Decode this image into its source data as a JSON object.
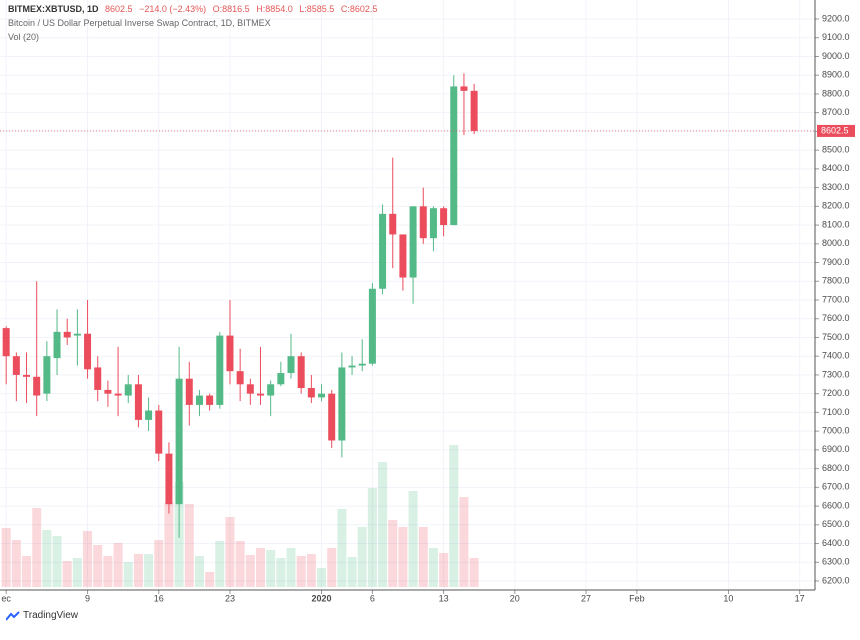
{
  "chart_data": {
    "type": "candlestick",
    "header": {
      "symbol": "BITMEX:XBTUSD, 1D",
      "last": "8602.5",
      "change": "−214.0 (−2.43%)",
      "open": "O:8816.5",
      "high": "H:8854.0",
      "low": "L:8585.5",
      "close": "C:8602.5"
    },
    "title": "Bitcoin / US Dollar Perpetual Inverse Swap Contract, 1D, BITMEX",
    "volume_label": "Vol (20)",
    "brand": "TradingView",
    "up_color": "#53b987",
    "down_color": "#eb4d5c",
    "x": [
      "2019-12-01",
      "2019-12-02",
      "2019-12-03",
      "2019-12-04",
      "2019-12-05",
      "2019-12-06",
      "2019-12-07",
      "2019-12-08",
      "2019-12-09",
      "2019-12-10",
      "2019-12-11",
      "2019-12-12",
      "2019-12-13",
      "2019-12-14",
      "2019-12-15",
      "2019-12-16",
      "2019-12-17",
      "2019-12-18",
      "2019-12-19",
      "2019-12-20",
      "2019-12-21",
      "2019-12-22",
      "2019-12-23",
      "2019-12-24",
      "2019-12-25",
      "2019-12-26",
      "2019-12-27",
      "2019-12-28",
      "2019-12-29",
      "2019-12-30",
      "2019-12-31",
      "2020-01-01",
      "2020-01-02",
      "2020-01-03",
      "2020-01-04",
      "2020-01-05",
      "2020-01-06",
      "2020-01-07",
      "2020-01-08",
      "2020-01-09",
      "2020-01-10",
      "2020-01-11",
      "2020-01-12",
      "2020-01-13",
      "2020-01-14",
      "2020-01-15",
      "2020-01-16"
    ],
    "open": [
      7550,
      7400,
      7300,
      7290,
      7200,
      7390,
      7530,
      7510,
      7520,
      7340,
      7220,
      7200,
      7190,
      7250,
      7060,
      7110,
      6880,
      6610,
      7280,
      7140,
      7190,
      7140,
      7510,
      7320,
      7250,
      7200,
      7190,
      7250,
      7310,
      7400,
      7230,
      7180,
      7200,
      6950,
      7340,
      7350,
      7360,
      7760,
      8160,
      8050,
      7820,
      8200,
      8030,
      8190,
      8100,
      8840,
      8816.5
    ],
    "high": [
      7560,
      7420,
      7420,
      7800,
      7480,
      7650,
      7600,
      7650,
      7700,
      7400,
      7270,
      7450,
      7300,
      7300,
      7180,
      7140,
      6940,
      7450,
      7370,
      7220,
      7200,
      7530,
      7700,
      7440,
      7280,
      7450,
      7270,
      7370,
      7520,
      7420,
      7300,
      7250,
      7220,
      7420,
      7400,
      7490,
      7790,
      8210,
      8460,
      8050,
      8200,
      8300,
      8200,
      8200,
      8900,
      8910,
      8854
    ],
    "low": [
      7250,
      7160,
      7150,
      7080,
      7160,
      7300,
      7460,
      7350,
      7280,
      7160,
      7130,
      7080,
      7150,
      7020,
      7000,
      6840,
      6560,
      6430,
      7030,
      7080,
      7110,
      7120,
      7250,
      7160,
      7140,
      7140,
      7080,
      7240,
      7280,
      7200,
      7150,
      7160,
      6910,
      6860,
      7300,
      7320,
      7350,
      7730,
      7870,
      7750,
      7680,
      8000,
      7960,
      8040,
      8100,
      8580,
      8585.5
    ],
    "close": [
      7400,
      7300,
      7290,
      7190,
      7400,
      7530,
      7500,
      7520,
      7330,
      7220,
      7200,
      7190,
      7250,
      7060,
      7110,
      6880,
      6610,
      7280,
      7140,
      7190,
      7140,
      7510,
      7320,
      7250,
      7200,
      7190,
      7250,
      7310,
      7400,
      7230,
      7180,
      7200,
      6950,
      7340,
      7350,
      7360,
      7760,
      8160,
      8050,
      7820,
      8200,
      8030,
      8190,
      8100,
      8840,
      8816.5,
      8602.5
    ],
    "volume": [
      59,
      47,
      31,
      79,
      57,
      51,
      26,
      29,
      56,
      42,
      31,
      44,
      25,
      33,
      33,
      47,
      84,
      105,
      83,
      31,
      15,
      46,
      70,
      46,
      32,
      39,
      37,
      29,
      39,
      31,
      33,
      19,
      39,
      78,
      30,
      60,
      99,
      125,
      67,
      60,
      96,
      60,
      39,
      34,
      142,
      90,
      29
    ],
    "volume_lim": [
      0,
      300
    ],
    "xlim": [
      "2019-11-30",
      "2020-02-19"
    ],
    "xticks": [
      {
        "value": "2019-12-01",
        "label": "ec"
      },
      {
        "value": "2019-12-09",
        "label": "9"
      },
      {
        "value": "2019-12-16",
        "label": "16"
      },
      {
        "value": "2019-12-23",
        "label": "23"
      },
      {
        "value": "2020-01-01",
        "label": "2020"
      },
      {
        "value": "2020-01-06",
        "label": "6"
      },
      {
        "value": "2020-01-13",
        "label": "13"
      },
      {
        "value": "2020-01-20",
        "label": "20"
      },
      {
        "value": "2020-01-27",
        "label": "27"
      },
      {
        "value": "2020-02-01",
        "label": "Feb"
      },
      {
        "value": "2020-02-10",
        "label": "10"
      },
      {
        "value": "2020-02-17",
        "label": "17"
      }
    ],
    "ylim": [
      6200,
      9200
    ],
    "yticks": [
      {
        "value": 6200,
        "label": "6200.0"
      },
      {
        "value": 6300,
        "label": "6300.0"
      },
      {
        "value": 6400,
        "label": "6400.0"
      },
      {
        "value": 6500,
        "label": "6500.0"
      },
      {
        "value": 6600,
        "label": "6600.0"
      },
      {
        "value": 6700,
        "label": "6700.0"
      },
      {
        "value": 6800,
        "label": "6800.0"
      },
      {
        "value": 6900,
        "label": "6900.0"
      },
      {
        "value": 7000,
        "label": "7000.0"
      },
      {
        "value": 7100,
        "label": "7100.0"
      },
      {
        "value": 7200,
        "label": "7200.0"
      },
      {
        "value": 7300,
        "label": "7300.0"
      },
      {
        "value": 7400,
        "label": "7400.0"
      },
      {
        "value": 7500,
        "label": "7500.0"
      },
      {
        "value": 7600,
        "label": "7600.0"
      },
      {
        "value": 7700,
        "label": "7700.0"
      },
      {
        "value": 7800,
        "label": "7800.0"
      },
      {
        "value": 7900,
        "label": "7900.0"
      },
      {
        "value": 8000,
        "label": "8000.0"
      },
      {
        "value": 8100,
        "label": "8100.0"
      },
      {
        "value": 8200,
        "label": "8200.0"
      },
      {
        "value": 8300,
        "label": "8300.0"
      },
      {
        "value": 8400,
        "label": "8400.0"
      },
      {
        "value": 8500,
        "label": "8500.0"
      },
      {
        "value": 8600,
        "label": "8600.0"
      },
      {
        "value": 8700,
        "label": "8700.0"
      },
      {
        "value": 8800,
        "label": "8800.0"
      },
      {
        "value": 8900,
        "label": "8900.0"
      },
      {
        "value": 9000,
        "label": "9000.0"
      },
      {
        "value": 9100,
        "label": "9100.0"
      },
      {
        "value": 9200,
        "label": "9200.0"
      }
    ],
    "grid": true
  }
}
